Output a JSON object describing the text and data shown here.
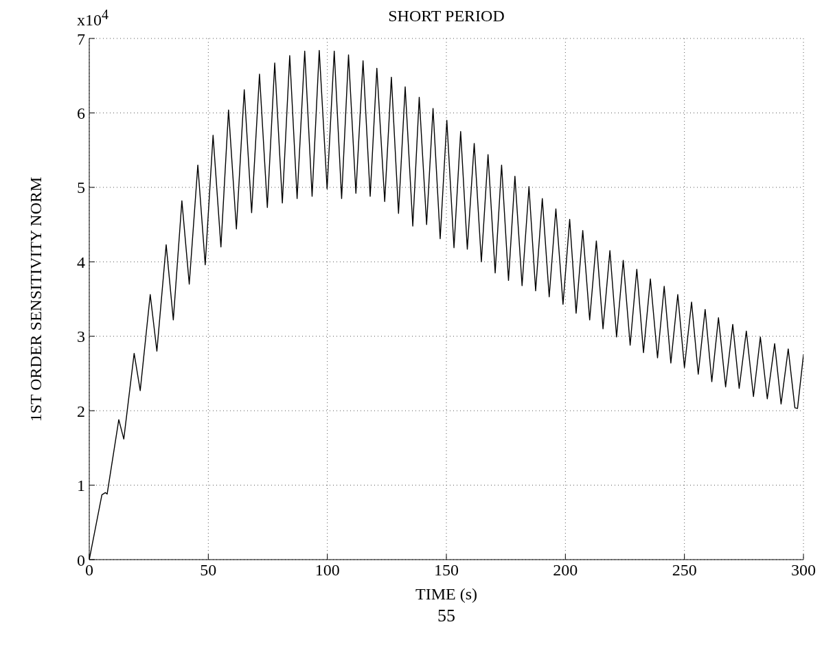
{
  "chart_data": {
    "type": "line",
    "title": "SHORT PERIOD",
    "xlabel": "TIME (s)",
    "ylabel": "1ST ORDER SENSITIVITY NORM",
    "annotations": [
      "x10$^{4}$",
      "55"
    ],
    "xlim": [
      0,
      300
    ],
    "xticks": [
      0,
      50,
      100,
      150,
      200,
      250,
      300
    ],
    "ylim": [
      0,
      7
    ],
    "yticks": [
      0,
      1,
      2,
      3,
      4,
      5,
      6,
      7
    ],
    "grid": true,
    "legend": false,
    "marker": "none",
    "line_style": "solid",
    "x": [
      0,
      5.3,
      6.8,
      7.5,
      12.4,
      14.5,
      18.85,
      21.4,
      25.6,
      28.4,
      32.3,
      35.3,
      38.9,
      42.0,
      45.6,
      48.7,
      52.0,
      55.3,
      58.5,
      61.8,
      65.1,
      68.2,
      71.5,
      74.8,
      77.9,
      81.1,
      84.2,
      87.3,
      90.5,
      93.6,
      96.6,
      99.9,
      102.9,
      106.0,
      108.9,
      112.0,
      115.0,
      118.0,
      120.8,
      124.1,
      126.9,
      129.9,
      132.7,
      135.9,
      138.6,
      141.7,
      144.4,
      147.4,
      150.2,
      153.2,
      156.0,
      158.8,
      161.7,
      164.7,
      167.5,
      170.5,
      173.2,
      176.1,
      178.8,
      181.8,
      184.7,
      187.5,
      190.3,
      193.2,
      196.0,
      199.0,
      201.8,
      204.5,
      207.3,
      210.2,
      213.0,
      215.8,
      218.7,
      221.5,
      224.3,
      227.2,
      230.0,
      232.8,
      235.7,
      238.7,
      241.5,
      244.3,
      247.2,
      250.0,
      253.0,
      255.8,
      258.7,
      261.5,
      264.3,
      267.3,
      270.3,
      273.0,
      276.0,
      279.0,
      281.9,
      284.8,
      287.9,
      290.6,
      293.6,
      296.4,
      297.5,
      300
    ],
    "series": [
      {
        "color": "#000000",
        "values": [
          0,
          0.87,
          0.9,
          0.88,
          1.88,
          1.62,
          2.77,
          2.27,
          3.56,
          2.8,
          4.23,
          3.22,
          4.82,
          3.7,
          5.3,
          3.96,
          5.7,
          4.2,
          6.04,
          4.44,
          6.31,
          4.66,
          6.52,
          4.73,
          6.67,
          4.79,
          6.77,
          4.85,
          6.83,
          4.88,
          6.84,
          4.98,
          6.83,
          4.85,
          6.78,
          4.92,
          6.7,
          4.88,
          6.6,
          4.81,
          6.48,
          4.65,
          6.35,
          4.48,
          6.21,
          4.5,
          6.06,
          4.31,
          5.9,
          4.19,
          5.75,
          4.17,
          5.59,
          4.0,
          5.44,
          3.85,
          5.3,
          3.75,
          5.15,
          3.68,
          5.01,
          3.61,
          4.85,
          3.53,
          4.71,
          3.43,
          4.57,
          3.31,
          4.42,
          3.22,
          4.28,
          3.1,
          4.15,
          2.99,
          4.02,
          2.88,
          3.9,
          2.78,
          3.77,
          2.71,
          3.67,
          2.64,
          3.56,
          2.58,
          3.46,
          2.49,
          3.36,
          2.39,
          3.25,
          2.32,
          3.16,
          2.3,
          3.07,
          2.19,
          2.99,
          2.16,
          2.9,
          2.09,
          2.83,
          2.04,
          2.03,
          2.75
        ]
      }
    ]
  }
}
